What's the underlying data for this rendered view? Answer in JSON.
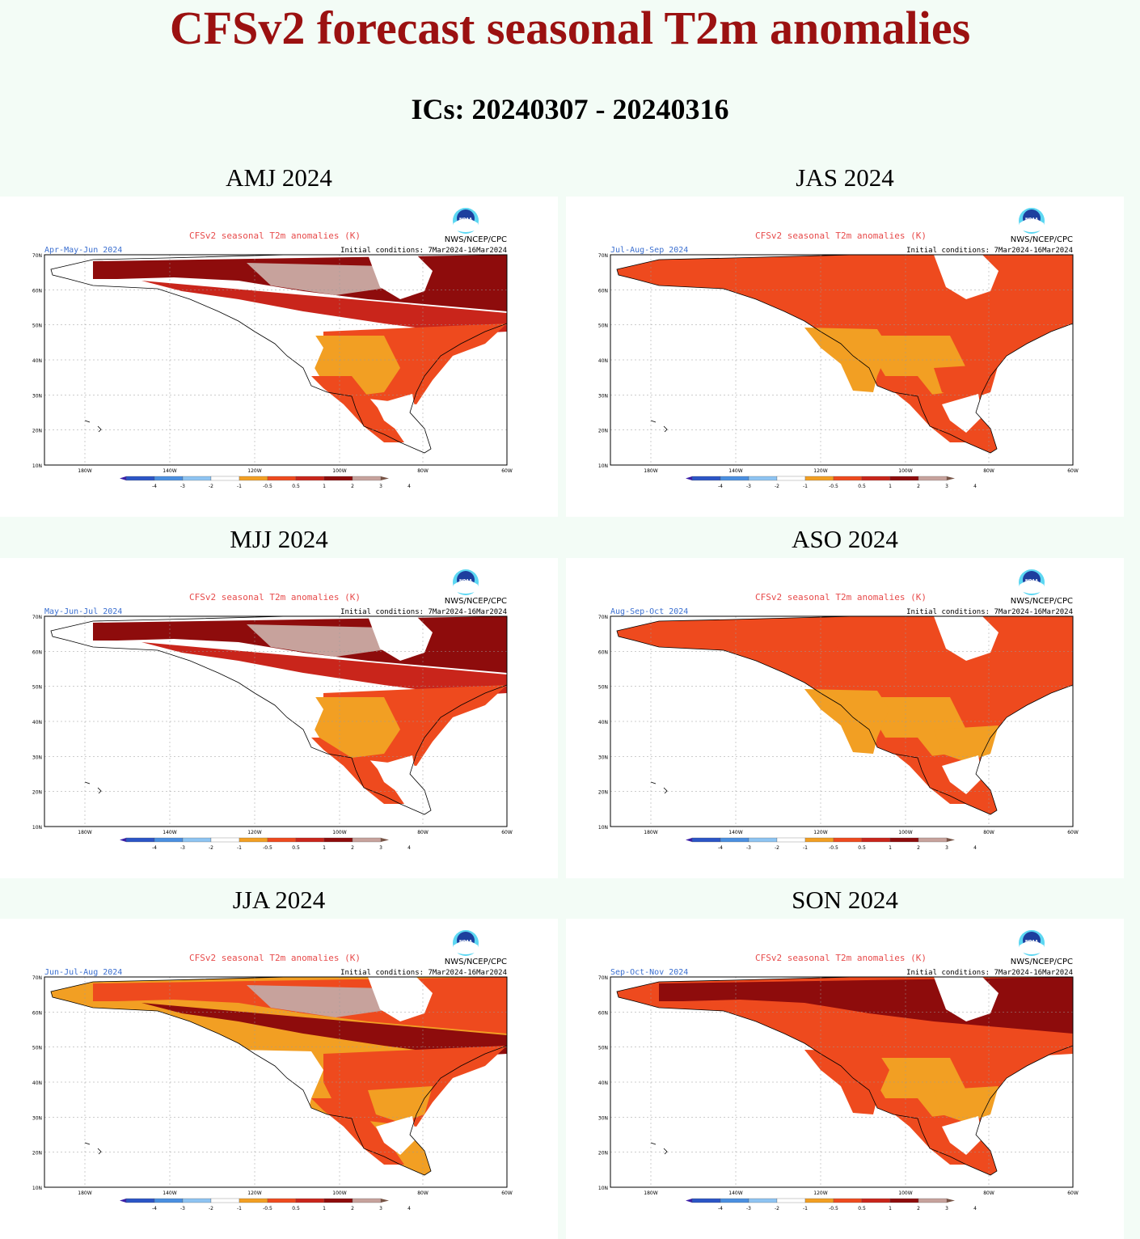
{
  "header": {
    "title": "CFSv2 forecast seasonal T2m anomalies",
    "subtitle": "ICs: 20240307 - 20240316"
  },
  "common": {
    "map_title": "CFSv2 seasonal T2m anomalies (K)",
    "agency": "NWS/NCEP/CPC",
    "logo_text": "NOAA",
    "initial_conditions": "Initial conditions: 7Mar2024-16Mar2024",
    "lat_labels": [
      "70N",
      "60N",
      "50N",
      "40N",
      "30N",
      "20N",
      "10N"
    ],
    "lon_labels": [
      "180W",
      "140W",
      "120W",
      "100W",
      "80W",
      "60W"
    ],
    "colorbar": {
      "labels": [
        "-4",
        "-3",
        "-2",
        "-1",
        "-0.5",
        "0.5",
        "1",
        "2",
        "3",
        "4"
      ],
      "colors": [
        "#3b1fa8",
        "#2b55c6",
        "#4a8fe0",
        "#8ec4f2",
        "#ffffff",
        "#f29f23",
        "#ee4a1e",
        "#c9251b",
        "#8e0c0c",
        "#c7a29c",
        "#775446"
      ]
    },
    "palette": {
      "land": "#ffffff",
      "lvl05": "#f29f23",
      "lvl1": "#ee4a1e",
      "lvl2": "#c9251b",
      "lvl3": "#8e0c0c",
      "lvl4": "#c7a29c",
      "lvl5": "#775446"
    }
  },
  "panels": [
    {
      "season": "AMJ 2024",
      "months": "Apr-May-Jun 2024",
      "scheme": "amj"
    },
    {
      "season": "JAS 2024",
      "months": "Jul-Aug-Sep 2024",
      "scheme": "jas"
    },
    {
      "season": "MJJ 2024",
      "months": "May-Jun-Jul 2024",
      "scheme": "mjj"
    },
    {
      "season": "ASO 2024",
      "months": "Aug-Sep-Oct 2024",
      "scheme": "aso"
    },
    {
      "season": "JJA 2024",
      "months": "Jun-Jul-Aug 2024",
      "scheme": "jja"
    },
    {
      "season": "SON 2024",
      "months": "Sep-Oct-Nov 2024",
      "scheme": "son"
    }
  ]
}
